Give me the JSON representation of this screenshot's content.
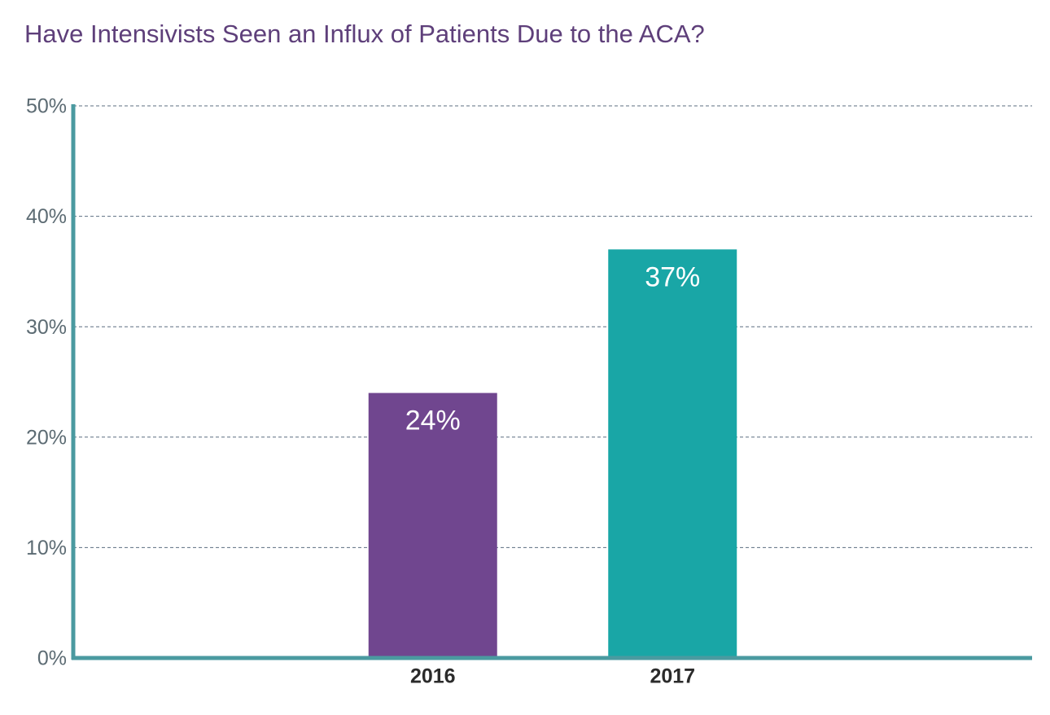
{
  "chart_data": {
    "type": "bar",
    "title": "Have Intensivists Seen an Influx of Patients Due to the ACA?",
    "categories": [
      "2016",
      "2017"
    ],
    "values": [
      24,
      37
    ],
    "value_labels": [
      "24%",
      "37%"
    ],
    "colors": [
      "#70468f",
      "#19a6a6"
    ],
    "ylim": [
      0,
      50
    ],
    "yticks": [
      {
        "value": 0,
        "label": "0%"
      },
      {
        "value": 10,
        "label": "10%"
      },
      {
        "value": 20,
        "label": "20%"
      },
      {
        "value": 30,
        "label": "30%"
      },
      {
        "value": 40,
        "label": "40%"
      },
      {
        "value": 50,
        "label": "50%"
      }
    ],
    "grid": true
  }
}
